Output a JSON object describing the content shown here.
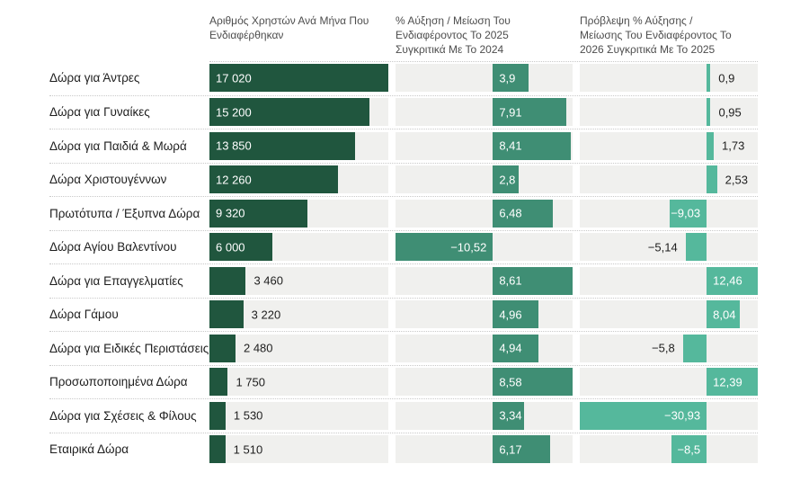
{
  "page": {
    "background": "#ffffff",
    "separator_color": "#c9c9c9",
    "track_color": "#f0f0ee",
    "header_text_color": "#4d4d4d",
    "row_label_color": "#1e1e1e",
    "value_inside_color": "#ffffff",
    "value_outside_color": "#1e1e1e"
  },
  "chart_data": {
    "type": "bar",
    "orientation": "horizontal",
    "grid": false,
    "legend": false,
    "categories": [
      "Δώρα για Άντρες",
      "Δώρα για Γυναίκες",
      "Δώρα για Παιδιά & Μωρά",
      "Δώρα Χριστουγέννων",
      "Πρωτότυπα / Έξυπνα Δώρα",
      "Δώρα Αγίου Βαλεντίνου",
      "Δώρα για Επαγγελματίες",
      "Δώρα Γάμου",
      "Δώρα για Ειδικές Περιστάσεις",
      "Προσωποποιημένα Δώρα",
      "Δώρα για Σχέσεις & Φίλους",
      "Εταιρικά Δώρα"
    ],
    "columns": [
      {
        "key": "users",
        "title": "Αριθμός Χρηστών Ανά Μήνα Που Ενδιαφέρθηκαν",
        "min": 0,
        "max": 17020,
        "bar_color": "#20563e",
        "track_color": "#f0f0ee"
      },
      {
        "key": "change-2025",
        "title": "% Αύξηση / Μείωση Του Ενδιαφέροντος Το 2025 Συγκριτικά Με Το 2024",
        "min": -10.52,
        "max": 8.61,
        "bar_color": "#3f8e74",
        "track_color": "#f0f0ee"
      },
      {
        "key": "forecast-2026",
        "title": "Πρόβλεψη % Αύξησης / Μείωσης Του Ενδιαφέροντος Το 2026 Συγκριτικά Με Το 2025",
        "min": -30.93,
        "max": 12.46,
        "bar_color": "#55b89c",
        "track_color": "#f0f0ee"
      }
    ],
    "series": [
      {
        "name": "Αριθμός Χρηστών Ανά Μήνα Που Ενδιαφέρθηκαν",
        "values": [
          17020,
          15200,
          13850,
          12260,
          9320,
          6000,
          3460,
          3220,
          2480,
          1750,
          1530,
          1510
        ],
        "labels": [
          "17 020",
          "15 200",
          "13 850",
          "12 260",
          "9 320",
          "6 000",
          "3 460",
          "3 220",
          "2 480",
          "1 750",
          "1 530",
          "1 510"
        ],
        "label_inside": [
          true,
          true,
          true,
          true,
          true,
          true,
          false,
          false,
          false,
          false,
          false,
          false
        ]
      },
      {
        "name": "% Αύξηση / Μείωση Του Ενδιαφέροντος Το 2025 Συγκριτικά Με Το 2024",
        "values": [
          3.9,
          7.91,
          8.41,
          2.8,
          6.48,
          -10.52,
          8.61,
          4.96,
          4.94,
          8.58,
          3.34,
          6.17
        ],
        "labels": [
          "3,9",
          "7,91",
          "8,41",
          "2,8",
          "6,48",
          "−10,52",
          "8,61",
          "4,96",
          "4,94",
          "8,58",
          "3,34",
          "6,17"
        ],
        "label_inside": [
          true,
          true,
          true,
          true,
          true,
          true,
          true,
          true,
          true,
          true,
          true,
          true
        ]
      },
      {
        "name": "Πρόβλεψη % Αύξησης / Μείωσης Του Ενδιαφέροντος Το 2026 Συγκριτικά Με Το 2025",
        "values": [
          0.9,
          0.95,
          1.73,
          2.53,
          -9.03,
          -5.14,
          12.46,
          8.04,
          -5.8,
          12.39,
          -30.93,
          -8.5
        ],
        "labels": [
          "0,9",
          "0,95",
          "1,73",
          "2,53",
          "−9,03",
          "−5,14",
          "12,46",
          "8,04",
          "−5,8",
          "12,39",
          "−30,93",
          "−8,5"
        ],
        "label_inside": [
          false,
          false,
          false,
          false,
          true,
          false,
          true,
          true,
          false,
          true,
          true,
          true
        ]
      }
    ]
  }
}
